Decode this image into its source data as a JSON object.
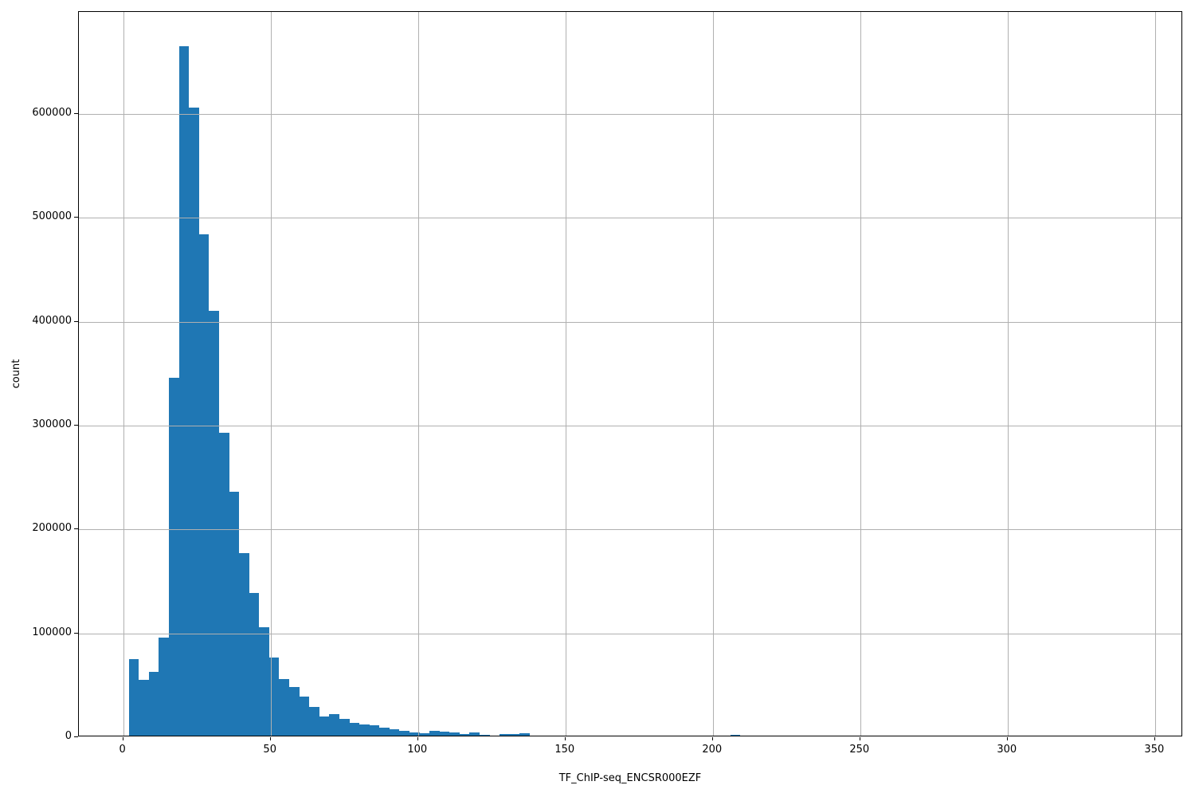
{
  "figure": {
    "background_color": "#ffffff"
  },
  "chart_data": {
    "type": "bar",
    "subtype": "histogram",
    "title": "",
    "xlabel": "TF_ChIP-seq_ENCSR000EZF",
    "ylabel": "count",
    "bar_color": "#1f77b4",
    "grid_color": "#b0b0b0",
    "spine_color": "#000000",
    "text_color": "#000000",
    "grid": "on",
    "grid_above_bars": true,
    "legend": "none",
    "xlim": [
      -15.05,
      359.5
    ],
    "ylim": [
      0,
      698000
    ],
    "xticks": [
      0,
      50,
      100,
      150,
      200,
      250,
      300,
      350
    ],
    "xtick_labels": [
      "0",
      "50",
      "100",
      "150",
      "200",
      "250",
      "300",
      "350"
    ],
    "yticks": [
      0,
      100000,
      200000,
      300000,
      400000,
      500000,
      600000
    ],
    "ytick_labels": [
      "0",
      "100000",
      "200000",
      "300000",
      "400000",
      "500000",
      "600000"
    ],
    "bin_start": 1.9,
    "bin_width": 3.4,
    "counts": [
      75000,
      55000,
      63000,
      96000,
      346000,
      665000,
      606000,
      484000,
      410000,
      293000,
      236000,
      177000,
      139000,
      106000,
      77000,
      56000,
      48000,
      39000,
      29000,
      20000,
      22000,
      18000,
      14000,
      12000,
      11500,
      9000,
      7400,
      6400,
      4600,
      3800,
      6400,
      5200,
      4400,
      3300,
      4400,
      2500,
      1800,
      3300,
      3200,
      3500,
      1600,
      800,
      1900,
      1800,
      1500,
      800,
      500,
      500,
      500,
      500,
      500,
      500,
      500,
      500,
      500,
      300,
      1500,
      400,
      200,
      200,
      2500,
      200,
      100,
      1400,
      0,
      0,
      0,
      0,
      0,
      0,
      0,
      0,
      0,
      0,
      0,
      0,
      0,
      0,
      0,
      0,
      0,
      0,
      0,
      0,
      0,
      0,
      0,
      0,
      0,
      0,
      0,
      0,
      0,
      0,
      0,
      0,
      0,
      0,
      0,
      0
    ]
  }
}
